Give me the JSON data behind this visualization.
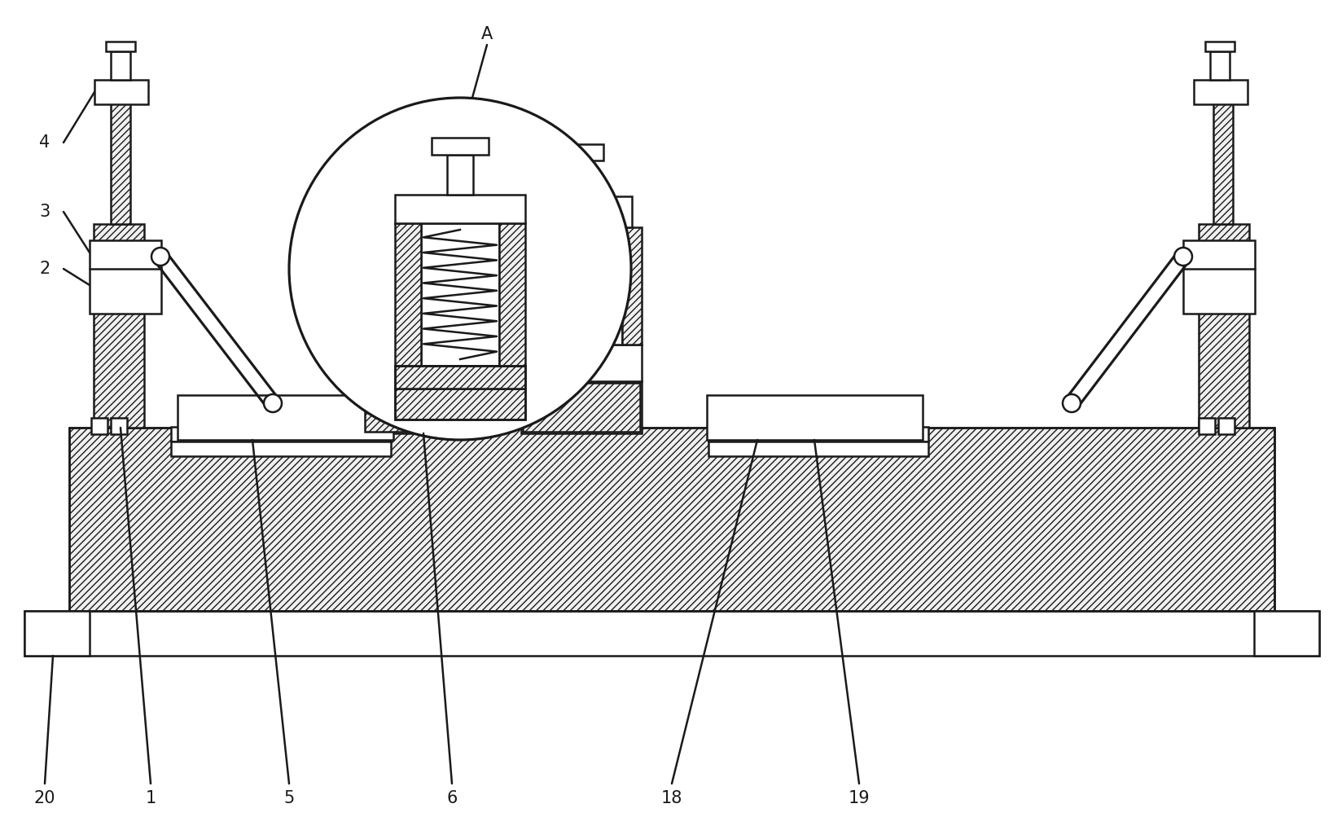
{
  "fig_width": 16.49,
  "fig_height": 10.3,
  "bg_color": "#ffffff",
  "line_color": "#1a1a1a",
  "lw": 1.8,
  "label_fontsize": 15
}
